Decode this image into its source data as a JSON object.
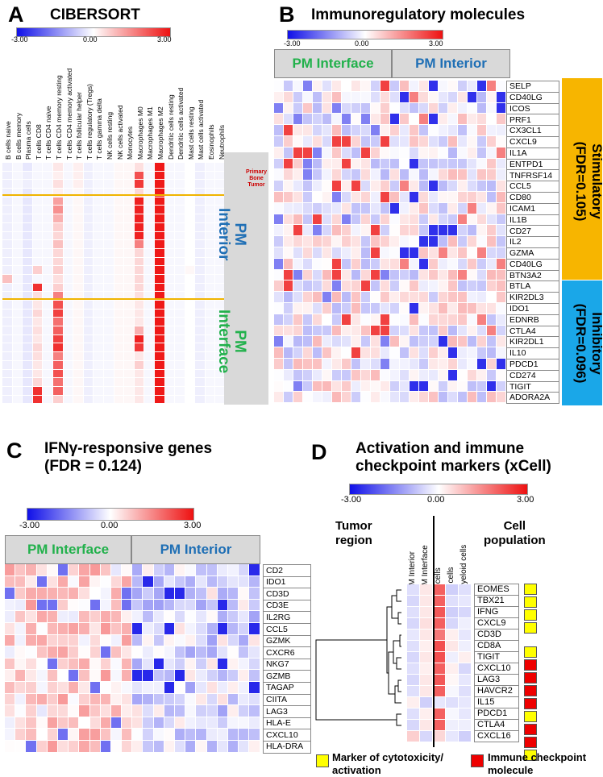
{
  "colors": {
    "low": "#1010e8",
    "mid": "#ffffff",
    "high": "#ee1111",
    "pm_interface": "#22b14c",
    "pm_interior": "#1f6fb5",
    "stimulatory": "#f7b500",
    "inhibitory": "#1aa7e8",
    "group_box": "#d9d9d9",
    "primary_tumor": "#cc0000",
    "orange_line": "#f0b400",
    "cytotoxic": "#ffff00",
    "checkpoint": "#ee0000"
  },
  "scale": {
    "min": "-3.00",
    "mid": "0.00",
    "max": "3.00"
  },
  "panelA": {
    "letter": "A",
    "title": "CIBERSORT",
    "columns": [
      "B cells naive",
      "B cells memory",
      "Plasma cells",
      "T cells CD8",
      "T cells CD4 naive",
      "T cells CD4 memory resting",
      "T cells CD4 memory activated",
      "T cells follicular helper",
      "T cells regulatory (Tregs)",
      "T cells gamma delta",
      "NK cells resting",
      "NK cells activated",
      "Monocytes",
      "Macrophages M0",
      "Macrophages M1",
      "Macrophages M2",
      "Dendritic cells resting",
      "Dendritic cells activated",
      "Mast cells resting",
      "Mast cells activated",
      "Eosinophils",
      "Neutrophils"
    ],
    "groups": [
      {
        "label_lines": [
          "Primary",
          "Bone",
          "Tumor"
        ]
      },
      {
        "label_lines": [
          "PM",
          "Interior"
        ]
      },
      {
        "label_lines": [
          "PM",
          "Interface"
        ]
      }
    ],
    "rows": [
      [
        -0.2,
        -0.1,
        -0.3,
        -0.1,
        -0.1,
        0.3,
        -0.1,
        0.2,
        -0.2,
        -0.1,
        -0.1,
        0.1,
        0.1,
        0.4,
        -0.1,
        2.9,
        -0.1,
        -0.1,
        0,
        -0.2,
        -0.1,
        -0.1
      ],
      [
        -0.2,
        -0.1,
        -0.2,
        -0.1,
        -0.1,
        0.2,
        -0.1,
        0.2,
        -0.2,
        -0.1,
        -0.1,
        0.1,
        0.1,
        2.2,
        -0.1,
        2.9,
        -0.1,
        -0.1,
        0,
        -0.2,
        -0.1,
        -0.1
      ],
      [
        -0.2,
        -0.1,
        -0.2,
        -0.1,
        -0.1,
        0.4,
        -0.1,
        0.2,
        -0.2,
        -0.1,
        -0.1,
        0.1,
        0.1,
        2.5,
        -0.1,
        2.9,
        -0.1,
        -0.1,
        0,
        -0.2,
        -0.1,
        -0.1
      ],
      [
        -0.2,
        -0.1,
        -0.3,
        -0.1,
        -0.1,
        0.2,
        -0.1,
        0.1,
        -0.2,
        -0.1,
        -0.1,
        0.1,
        0.1,
        0.5,
        -0.1,
        2.9,
        -0.1,
        -0.1,
        0,
        -0.2,
        -0.1,
        -0.1
      ],
      [
        -0.2,
        -0.1,
        -0.3,
        -0.1,
        -0.1,
        1.2,
        -0.1,
        0.1,
        -0.2,
        -0.1,
        -0.1,
        0.1,
        0.1,
        2.8,
        -0.1,
        2.9,
        -0.1,
        -0.1,
        0,
        -0.2,
        -0.1,
        -0.1
      ],
      [
        -0.2,
        -0.1,
        -0.3,
        -0.1,
        -0.1,
        1.4,
        -0.1,
        0.1,
        -0.2,
        -0.1,
        -0.1,
        0.1,
        0.1,
        2.8,
        -0.1,
        2.9,
        -0.1,
        -0.1,
        0,
        -0.2,
        -0.1,
        -0.1
      ],
      [
        -0.2,
        -0.1,
        -0.3,
        -0.1,
        -0.1,
        1.0,
        -0.1,
        0.1,
        -0.2,
        -0.1,
        -0.1,
        0.1,
        0.1,
        2.8,
        -0.1,
        2.9,
        -0.1,
        -0.1,
        0,
        -0.2,
        -0.1,
        -0.1
      ],
      [
        -0.2,
        -0.1,
        -0.3,
        -0.1,
        -0.1,
        0.6,
        -0.1,
        0.1,
        -0.2,
        -0.1,
        -0.1,
        0.1,
        0.1,
        2.8,
        -0.1,
        2.9,
        -0.1,
        -0.1,
        0,
        -0.2,
        -0.1,
        -0.1
      ],
      [
        -0.2,
        -0.1,
        -0.3,
        -0.1,
        -0.1,
        0.5,
        -0.1,
        0.1,
        -0.2,
        -0.1,
        -0.1,
        0.1,
        0.1,
        2.8,
        -0.1,
        2.9,
        -0.1,
        -0.1,
        0,
        -0.2,
        -0.1,
        -0.1
      ],
      [
        -0.2,
        -0.1,
        -0.3,
        -0.1,
        -0.1,
        0.8,
        -0.1,
        0.1,
        -0.2,
        -0.1,
        -0.1,
        0.1,
        0.1,
        1.6,
        -0.1,
        2.9,
        -0.1,
        -0.1,
        0,
        -0.2,
        -0.1,
        -0.1
      ],
      [
        -0.2,
        -0.1,
        -0.3,
        -0.1,
        -0.1,
        0.5,
        -0.1,
        0.1,
        -0.2,
        -0.1,
        -0.1,
        0.1,
        0.1,
        0.5,
        -0.1,
        2.9,
        -0.1,
        -0.1,
        0,
        -0.2,
        -0.1,
        -0.1
      ],
      [
        -0.2,
        -0.1,
        -0.3,
        -0.1,
        -0.1,
        0.5,
        -0.1,
        0.1,
        -0.2,
        -0.1,
        -0.1,
        0.1,
        0.1,
        0.5,
        -0.1,
        2.9,
        -0.1,
        -0.1,
        0,
        -0.2,
        -0.1,
        -0.1
      ],
      [
        -0.2,
        -0.1,
        -0.3,
        0.6,
        -0.1,
        0.6,
        -0.1,
        0.1,
        -0.2,
        -0.1,
        -0.1,
        0.1,
        0.1,
        0.5,
        -0.1,
        2.9,
        -0.1,
        -0.1,
        0.1,
        -0.2,
        -0.1,
        -0.1
      ],
      [
        0.8,
        -0.1,
        -0.3,
        -0.1,
        -0.1,
        0.4,
        -0.1,
        0.1,
        -0.2,
        -0.1,
        -0.1,
        0.1,
        0.1,
        0.5,
        -0.1,
        2.9,
        -0.1,
        -0.1,
        0,
        -0.2,
        -0.1,
        -0.1
      ],
      [
        -0.2,
        -0.1,
        -0.3,
        2.6,
        -0.1,
        0.6,
        -0.1,
        0.1,
        -0.2,
        -0.1,
        -0.1,
        0.1,
        0.1,
        0.5,
        -0.1,
        2.9,
        -0.1,
        -0.1,
        0,
        -0.2,
        -0.1,
        -0.1
      ],
      [
        -0.2,
        -0.1,
        -0.3,
        0.4,
        -0.1,
        1.6,
        -0.1,
        0.1,
        -0.2,
        -0.1,
        -0.1,
        0.1,
        0.1,
        0.4,
        -0.1,
        2.9,
        -0.1,
        -0.1,
        0,
        -0.2,
        -0.1,
        -0.1
      ],
      [
        -0.2,
        -0.1,
        -0.3,
        0.3,
        -0.1,
        2.2,
        -0.1,
        0.1,
        -0.2,
        -0.1,
        -0.1,
        0.1,
        0.1,
        0.3,
        -0.1,
        2.9,
        -0.1,
        -0.1,
        0,
        -0.2,
        -0.1,
        -0.1
      ],
      [
        -0.2,
        -0.1,
        -0.3,
        0.5,
        -0.1,
        2.4,
        -0.1,
        0.1,
        -0.2,
        -0.1,
        -0.1,
        0.1,
        0.1,
        0.3,
        -0.1,
        2.9,
        -0.1,
        -0.1,
        0,
        -0.2,
        -0.1,
        -0.1
      ],
      [
        -0.2,
        -0.1,
        -0.3,
        0.3,
        -0.1,
        1.8,
        -0.1,
        0.1,
        -0.2,
        -0.1,
        -0.1,
        0.1,
        0.1,
        0.3,
        -0.1,
        2.9,
        -0.1,
        -0.1,
        0,
        -0.2,
        -0.1,
        -0.1
      ],
      [
        -0.2,
        -0.1,
        -0.3,
        0.4,
        -0.1,
        2.0,
        -0.1,
        0.1,
        -0.2,
        -0.1,
        -0.1,
        0.1,
        0.1,
        1.0,
        -0.1,
        2.9,
        -0.1,
        -0.1,
        0,
        -0.2,
        -0.1,
        -0.1
      ],
      [
        -0.2,
        -0.1,
        -0.3,
        0.3,
        -0.1,
        2.4,
        -0.1,
        0.1,
        -0.2,
        -0.1,
        -0.1,
        0.1,
        0.1,
        2.8,
        -0.1,
        2.9,
        -0.1,
        -0.1,
        0,
        -0.2,
        -0.1,
        -0.1
      ],
      [
        -0.2,
        -0.1,
        -0.3,
        0.5,
        -0.1,
        2.6,
        -0.1,
        0.1,
        -0.2,
        -0.1,
        -0.1,
        0.1,
        0.1,
        2.5,
        -0.1,
        2.9,
        -0.1,
        -0.1,
        0,
        -0.2,
        -0.1,
        -0.1
      ],
      [
        -0.2,
        -0.1,
        -0.3,
        0.4,
        -0.1,
        1.6,
        -0.1,
        0.1,
        -0.2,
        -0.1,
        -0.1,
        0.1,
        0.1,
        0.3,
        -0.1,
        2.9,
        -0.1,
        -0.1,
        0,
        -0.2,
        -0.1,
        -0.1
      ],
      [
        -0.2,
        -0.1,
        -0.3,
        0.3,
        -0.1,
        2.0,
        -0.1,
        0.1,
        -0.2,
        -0.1,
        -0.1,
        0.1,
        0.1,
        0.6,
        -0.1,
        2.9,
        -0.1,
        -0.1,
        0,
        -0.2,
        -0.1,
        -0.1
      ],
      [
        -0.2,
        -0.1,
        -0.3,
        0.3,
        -0.1,
        2.2,
        -0.1,
        0.1,
        -0.2,
        -0.1,
        -0.1,
        0.1,
        0.1,
        0.3,
        -0.1,
        2.9,
        -0.1,
        -0.1,
        0,
        -0.2,
        -0.1,
        -0.1
      ],
      [
        -0.2,
        -0.1,
        -0.3,
        0.5,
        -0.1,
        1.8,
        -0.1,
        0.1,
        -0.2,
        -0.1,
        -0.1,
        0.1,
        0.1,
        0.3,
        -0.1,
        2.9,
        -0.1,
        -0.1,
        0,
        -0.2,
        -0.1,
        -0.1
      ],
      [
        -0.2,
        -0.1,
        -0.3,
        2.6,
        -0.1,
        2.0,
        -0.1,
        0.1,
        -0.2,
        -0.1,
        -0.1,
        0.1,
        0.1,
        0.3,
        -0.1,
        2.9,
        -0.1,
        -0.1,
        0,
        -0.2,
        -0.1,
        -0.1
      ],
      [
        -0.2,
        -0.1,
        -0.3,
        2.6,
        -0.1,
        0.6,
        -0.1,
        0.1,
        -0.2,
        -0.1,
        -0.1,
        0.1,
        0.1,
        0.3,
        -0.1,
        2.9,
        -0.1,
        -0.1,
        0,
        -0.2,
        -0.1,
        -0.1
      ]
    ]
  },
  "panelB": {
    "letter": "B",
    "title": "Immunoregulatory molecules",
    "groups": [
      "PM Interface",
      "PM Interior"
    ],
    "genes": [
      "SELP",
      "CD40LG",
      "ICOS",
      "PRF1",
      "CX3CL1",
      "CXCL9",
      "IL1A",
      "ENTPD1",
      "TNFRSF14",
      "CCL5",
      "CD80",
      "ICAM1",
      "IL1B",
      "CD27",
      "IL2",
      "GZMA",
      "CD40LG",
      "BTN3A2",
      "BTLA",
      "KIR2DL3",
      "IDO1",
      "EDNRB",
      "CTLA4",
      "KIR2DL1",
      "IL10",
      "PDCD1",
      "CD274",
      "TIGIT",
      "ADORA2A"
    ],
    "categories": [
      {
        "line1": "Stimulatory",
        "line2": "(FDR=0.105)"
      },
      {
        "line1": "Inhibitory",
        "line2": "(FDR=0.096)"
      }
    ]
  },
  "panelC": {
    "letter": "C",
    "title_line1": "IFNγ-responsive genes",
    "title_line2": "(FDR = 0.124)",
    "groups": [
      "PM Interface",
      "PM Interior"
    ],
    "genes": [
      "CD2",
      "IDO1",
      "CD3D",
      "CD3E",
      "IL2RG",
      "CCL5",
      "GZMK",
      "CXCR6",
      "NKG7",
      "GZMB",
      "TAGAP",
      "CIITA",
      "LAG3",
      "HLA-E",
      "CXCL10",
      "HLA-DRA"
    ]
  },
  "panelD": {
    "letter": "D",
    "title_line1": "Activation and immune",
    "title_line2": "checkpoint markers (xCell)",
    "tumor_region_line1": "Tumor",
    "tumor_region_line2": "region",
    "cell_population_line1": "Cell",
    "cell_population_line2": "population",
    "columns": [
      "PM Interior",
      "PM Interface",
      "T cells",
      "B cells",
      "Myeloid cells"
    ],
    "genes": [
      "EOMES",
      "TBX21",
      "IFNG",
      "CXCL9",
      "CD3D",
      "CD8A",
      "TIGIT",
      "CXCL10",
      "LAG3",
      "HAVCR2",
      "IL15",
      "PDCD1",
      "CTLA4",
      "CXCL16"
    ],
    "marker_type": [
      "cytotoxic",
      "cytotoxic",
      "cytotoxic",
      "cytotoxic",
      "none",
      "cytotoxic",
      "checkpoint",
      "checkpoint",
      "checkpoint",
      "checkpoint",
      "cytotoxic",
      "checkpoint",
      "checkpoint",
      "cytotoxic"
    ],
    "values": [
      [
        -0.4,
        0.3,
        2.0,
        -0.6,
        -0.4
      ],
      [
        -0.5,
        0.3,
        2.0,
        -0.4,
        -0.3
      ],
      [
        -0.4,
        0.3,
        2.1,
        -0.6,
        -0.5
      ],
      [
        -0.5,
        0.4,
        2.0,
        -0.5,
        -0.2
      ],
      [
        -0.3,
        0.3,
        1.7,
        0.2,
        -0.3
      ],
      [
        -0.4,
        0.2,
        2.2,
        0.3,
        -0.2
      ],
      [
        -0.5,
        0.3,
        2.2,
        -0.2,
        0.2
      ],
      [
        -0.4,
        0.2,
        2.0,
        0.2,
        -0.5
      ],
      [
        -0.5,
        0.3,
        2.1,
        0.1,
        -0.3
      ],
      [
        -0.4,
        0.3,
        2.0,
        -0.1,
        -0.4
      ],
      [
        0.2,
        -0.6,
        -0.3,
        -0.4,
        -0.3
      ],
      [
        -0.4,
        0.2,
        2.0,
        -0.1,
        -0.3
      ],
      [
        -0.5,
        0.3,
        2.0,
        -0.2,
        -0.2
      ],
      [
        0.6,
        -0.5,
        0.5,
        -0.3,
        -0.6
      ]
    ],
    "legend": [
      {
        "type": "cytotoxic",
        "line1": "Marker of cytotoxicity/",
        "line2": "activation"
      },
      {
        "type": "checkpoint",
        "line1": "Immune checkpoint",
        "line2": "molecule"
      }
    ]
  }
}
